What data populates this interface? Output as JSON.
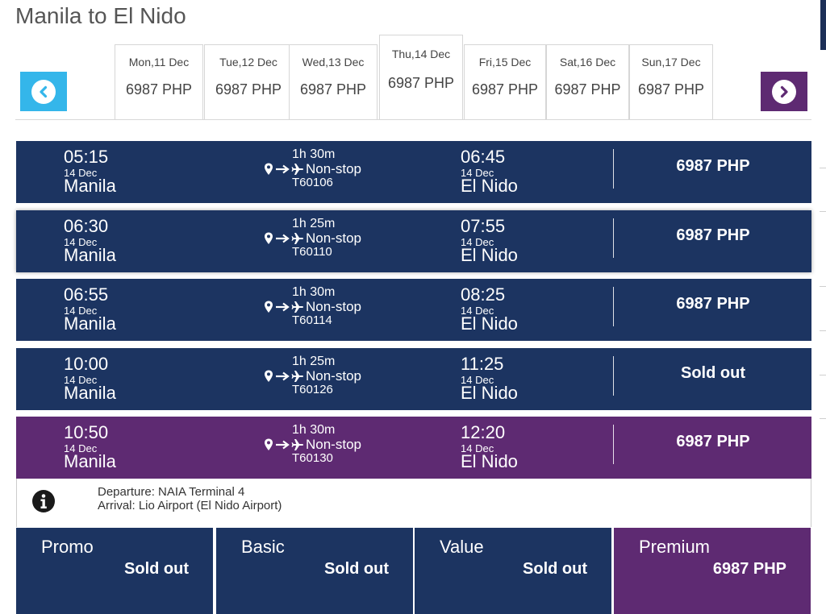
{
  "route_title": "Manila to El Nido",
  "date_tabs": [
    {
      "day": "Mon,11 Dec",
      "price": "6987 PHP",
      "active": false
    },
    {
      "day": "Tue,12 Dec",
      "price": "6987 PHP",
      "active": false
    },
    {
      "day": "Wed,13 Dec",
      "price": "6987 PHP",
      "active": false
    },
    {
      "day": "Thu,14 Dec",
      "price": "6987 PHP",
      "active": true
    },
    {
      "day": "Fri,15 Dec",
      "price": "6987 PHP",
      "active": false
    },
    {
      "day": "Sat,16 Dec",
      "price": "6987 PHP",
      "active": false
    },
    {
      "day": "Sun,17 Dec",
      "price": "6987 PHP",
      "active": false
    }
  ],
  "flights": [
    {
      "dep_time": "05:15",
      "dep_date": "14 Dec",
      "origin": "Manila",
      "duration": "1h 30m",
      "stops": "Non-stop",
      "code": "T60106",
      "arr_time": "06:45",
      "arr_date": "14 Dec",
      "destination": "El Nido",
      "price": "6987 PHP"
    },
    {
      "dep_time": "06:30",
      "dep_date": "14 Dec",
      "origin": "Manila",
      "duration": "1h 25m",
      "stops": "Non-stop",
      "code": "T60110",
      "arr_time": "07:55",
      "arr_date": "14 Dec",
      "destination": "El Nido",
      "price": "6987 PHP"
    },
    {
      "dep_time": "06:55",
      "dep_date": "14 Dec",
      "origin": "Manila",
      "duration": "1h 30m",
      "stops": "Non-stop",
      "code": "T60114",
      "arr_time": "08:25",
      "arr_date": "14 Dec",
      "destination": "El Nido",
      "price": "6987 PHP"
    },
    {
      "dep_time": "10:00",
      "dep_date": "14 Dec",
      "origin": "Manila",
      "duration": "1h 25m",
      "stops": "Non-stop",
      "code": "T60126",
      "arr_time": "11:25",
      "arr_date": "14 Dec",
      "destination": "El Nido",
      "price": "Sold out"
    },
    {
      "dep_time": "10:50",
      "dep_date": "14 Dec",
      "origin": "Manila",
      "duration": "1h 30m",
      "stops": "Non-stop",
      "code": "T60130",
      "arr_time": "12:20",
      "arr_date": "14 Dec",
      "destination": "El Nido",
      "price": "6987 PHP"
    }
  ],
  "selected_flight_details": {
    "departure": "Departure: NAIA Terminal 4",
    "arrival": "Arrival: Lio Airport (El Nido Airport)"
  },
  "fares": [
    {
      "name": "Promo",
      "status": "Sold out"
    },
    {
      "name": "Basic",
      "status": "Sold out"
    },
    {
      "name": "Value",
      "status": "Sold out"
    },
    {
      "name": "Premium",
      "status": "6987 PHP"
    }
  ],
  "icons": {
    "prev": "chevron-left-icon",
    "next": "chevron-right-icon",
    "origin": "map-pin-icon",
    "arrow": "arrow-right-icon",
    "plane": "plane-icon",
    "info": "info-icon"
  },
  "colors": {
    "navy": "#1c3461",
    "purple": "#5e2a72",
    "light_blue": "#34b6ea"
  }
}
